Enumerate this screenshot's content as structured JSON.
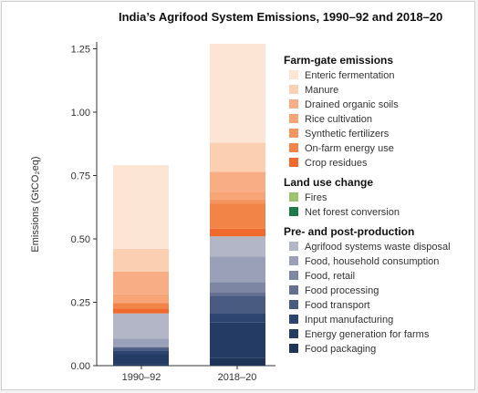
{
  "chart_data": {
    "type": "bar",
    "stacked": true,
    "title": "India’s Agrifood System Emissions, 1990–92 and 2018–20",
    "ylabel": "Emissions (GtCO₂eq)",
    "xlabel": "",
    "categories": [
      "1990–92",
      "2018–20"
    ],
    "ylim": [
      0,
      1.3
    ],
    "yticks": [
      "0.00",
      "0.25",
      "0.50",
      "0.75",
      "1.00",
      "1.25"
    ],
    "grid": false,
    "legend_position": "right",
    "groups": [
      {
        "name": "Farm-gate emissions",
        "items": [
          "Enteric fermentation",
          "Manure",
          "Drained organic soils",
          "Rice cultivation",
          "Synthetic fertilizers",
          "On-farm energy use",
          "Crop residues"
        ]
      },
      {
        "name": "Land use change",
        "items": [
          "Fires",
          "Net forest conversion"
        ]
      },
      {
        "name": "Pre- and post-production",
        "items": [
          "Agrifood systems waste disposal",
          "Food, household consumption",
          "Food, retail",
          "Food processing",
          "Food transport",
          "Input manufacturing",
          "Energy generation for farms",
          "Food packaging"
        ]
      }
    ],
    "series": [
      {
        "name": "Food packaging",
        "color": "#1f3557",
        "values": [
          0.005,
          0.03
        ]
      },
      {
        "name": "Energy generation for farms",
        "color": "#243c63",
        "values": [
          0.04,
          0.14
        ]
      },
      {
        "name": "Input manufacturing",
        "color": "#2e4470",
        "values": [
          0.015,
          0.035
        ]
      },
      {
        "name": "Food transport",
        "color": "#4a5b82",
        "values": [
          0.01,
          0.07
        ]
      },
      {
        "name": "Food processing",
        "color": "#656f92",
        "values": [
          0.003,
          0.015
        ]
      },
      {
        "name": "Food, retail",
        "color": "#7d86a3",
        "values": [
          0.003,
          0.04
        ]
      },
      {
        "name": "Food, household consumption",
        "color": "#9aa0b7",
        "values": [
          0.03,
          0.1
        ]
      },
      {
        "name": "Agrifood systems waste disposal",
        "color": "#b3b6c6",
        "values": [
          0.1,
          0.08
        ]
      },
      {
        "name": "Net forest conversion",
        "color": "#1e7a4a",
        "values": [
          0.0,
          0.0
        ]
      },
      {
        "name": "Fires",
        "color": "#9cc46f",
        "values": [
          0.0,
          0.0
        ]
      },
      {
        "name": "Crop residues",
        "color": "#ef6a2c",
        "values": [
          0.02,
          0.03
        ]
      },
      {
        "name": "On-farm energy use",
        "color": "#f28448",
        "values": [
          0.02,
          0.1
        ]
      },
      {
        "name": "Synthetic fertilizers",
        "color": "#f59560",
        "values": [
          0.005,
          0.015
        ]
      },
      {
        "name": "Rice cultivation",
        "color": "#f7a577",
        "values": [
          0.03,
          0.03
        ]
      },
      {
        "name": "Drained organic soils",
        "color": "#f8ad84",
        "values": [
          0.09,
          0.08
        ]
      },
      {
        "name": "Manure",
        "color": "#fbcfb2",
        "values": [
          0.09,
          0.115
        ]
      },
      {
        "name": "Enteric fermentation",
        "color": "#fde5d6",
        "values": [
          0.33,
          0.39
        ]
      }
    ]
  }
}
